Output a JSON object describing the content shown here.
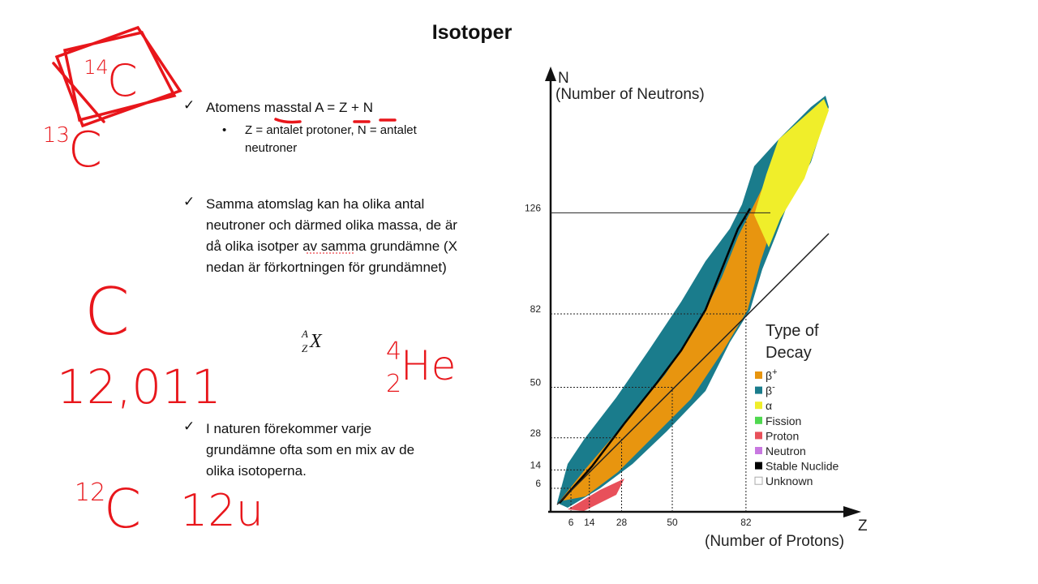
{
  "title": "Isotoper",
  "bullets": [
    {
      "text": "Atomens masstal A = Z + N",
      "sub": [
        "Z = antalet protoner, N = antalet neutroner"
      ]
    },
    {
      "text": "Samma atomslag kan ha olika antal neutroner och därmed olika massa, de är då olika isotper av samma grundämne  (X  nedan är förkortningen för grundämnet)",
      "sub": []
    },
    {
      "text": "I naturen förekommer varje grundämne ofta som en mix av de olika isotoperna.",
      "sub": []
    }
  ],
  "formula": {
    "A": "A",
    "Z": "Z",
    "X": "X"
  },
  "diagram": {
    "y_axis": {
      "symbol": "N",
      "label": "(Number of Neutrons)"
    },
    "x_axis": {
      "symbol": "Z",
      "label": "(Number of Protons)"
    },
    "x_ticks": [
      6,
      14,
      28,
      50,
      82
    ],
    "y_ticks": [
      6,
      14,
      28,
      50,
      82,
      126
    ],
    "legend": {
      "title": "Type of Decay",
      "items": [
        {
          "label": "β",
          "sup": "+",
          "color": "#e8950f"
        },
        {
          "label": "β",
          "sup": "-",
          "color": "#1a7c8c"
        },
        {
          "label": "α",
          "color": "#f0ee2a"
        },
        {
          "label": "Fission",
          "color": "#4fd84f"
        },
        {
          "label": "Proton",
          "color": "#e8505a"
        },
        {
          "label": "Neutron",
          "color": "#c878e0"
        },
        {
          "label": "Stable Nuclide",
          "color": "#000000"
        },
        {
          "label": "Unknown",
          "color": "#ffffff"
        }
      ]
    }
  },
  "annotations": [
    {
      "pre_sup": "14",
      "text": "C"
    },
    {
      "pre_sup": "13",
      "text": "C"
    },
    {
      "text": "C"
    },
    {
      "text": "12,011"
    },
    {
      "pre_sup": "4",
      "pre_sub": "2",
      "text": "He"
    },
    {
      "pre_sup": "12",
      "text": "C"
    },
    {
      "text": "12u"
    }
  ]
}
